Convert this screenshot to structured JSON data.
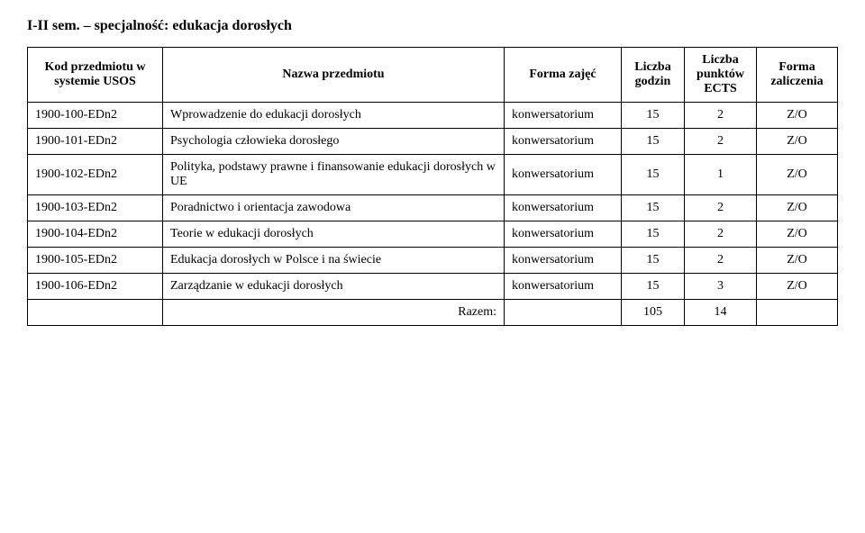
{
  "heading": "I-II sem. – specjalność: edukacja dorosłych",
  "headers": {
    "code": "Kod przedmiotu w systemie USOS",
    "name": "Nazwa przedmiotu",
    "form": "Forma zajęć",
    "hours": "Liczba godzin",
    "ects": "Liczba punktów ECTS",
    "grade": "Forma zaliczenia"
  },
  "rows": [
    {
      "code": "1900-100-EDn2",
      "name": "Wprowadzenie do edukacji dorosłych",
      "form": "konwersatorium",
      "hours": "15",
      "ects": "2",
      "grade": "Z/O"
    },
    {
      "code": "1900-101-EDn2",
      "name": "Psychologia człowieka dorosłego",
      "form": "konwersatorium",
      "hours": "15",
      "ects": "2",
      "grade": "Z/O"
    },
    {
      "code": "1900-102-EDn2",
      "name": "Polityka, podstawy prawne i finansowanie edukacji dorosłych w UE",
      "form": "konwersatorium",
      "hours": "15",
      "ects": "1",
      "grade": "Z/O"
    },
    {
      "code": "1900-103-EDn2",
      "name": "Poradnictwo i orientacja zawodowa",
      "form": "konwersatorium",
      "hours": "15",
      "ects": "2",
      "grade": "Z/O"
    },
    {
      "code": "1900-104-EDn2",
      "name": "Teorie w edukacji dorosłych",
      "form": "konwersatorium",
      "hours": "15",
      "ects": "2",
      "grade": "Z/O"
    },
    {
      "code": "1900-105-EDn2",
      "name": "Edukacja dorosłych w Polsce i na świecie",
      "form": "konwersatorium",
      "hours": "15",
      "ects": "2",
      "grade": "Z/O"
    },
    {
      "code": "1900-106-EDn2",
      "name": "Zarządzanie w edukacji dorosłych",
      "form": "konwersatorium",
      "hours": "15",
      "ects": "3",
      "grade": "Z/O"
    }
  ],
  "totals": {
    "label": "Razem:",
    "hours": "105",
    "ects": "14"
  }
}
